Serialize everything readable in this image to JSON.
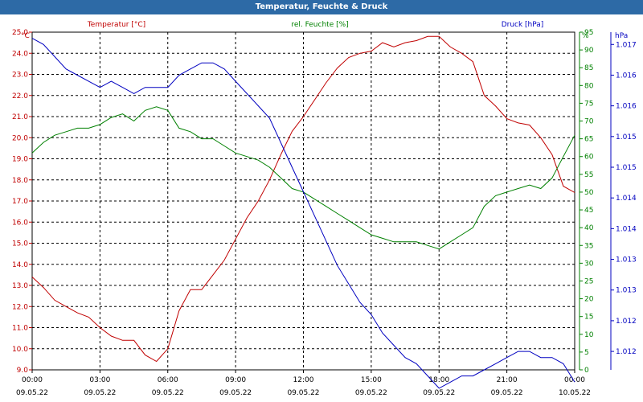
{
  "window": {
    "title": "Temperatur, Feuchte & Druck"
  },
  "chart_data": {
    "type": "line",
    "title": "Temperatur, Feuchte & Druck",
    "axes": {
      "temperature": {
        "label": "Temperatur [°C]",
        "unit": "°C",
        "min": 9.0,
        "max": 25.0,
        "step": 1.0,
        "color": "#c00000"
      },
      "humidity": {
        "label": "rel. Feuchte [%]",
        "unit": "%",
        "min": 0,
        "max": 95,
        "step": 5,
        "color": "#008000"
      },
      "pressure": {
        "label": "Druck [hPa]",
        "unit": "hPa",
        "min": 1.0117,
        "max": 1.0172,
        "color": "#0000c0",
        "ticks": [
          {
            "value": 1.012,
            "label": "1.012"
          },
          {
            "value": 1.0125,
            "label": "1.012"
          },
          {
            "value": 1.013,
            "label": "1.013"
          },
          {
            "value": 1.0135,
            "label": "1.013"
          },
          {
            "value": 1.014,
            "label": "1.014"
          },
          {
            "value": 1.0145,
            "label": "1.014"
          },
          {
            "value": 1.015,
            "label": "1.015"
          },
          {
            "value": 1.0155,
            "label": "1.015"
          },
          {
            "value": 1.016,
            "label": "1.016"
          },
          {
            "value": 1.0165,
            "label": "1.016"
          },
          {
            "value": 1.017,
            "label": "1.017"
          }
        ]
      },
      "x": {
        "min": 0,
        "max": 24,
        "ticks": [
          {
            "time": "00:00",
            "date": "09.05.22",
            "hour": 0
          },
          {
            "time": "03:00",
            "date": "09.05.22",
            "hour": 3
          },
          {
            "time": "06:00",
            "date": "09.05.22",
            "hour": 6
          },
          {
            "time": "09:00",
            "date": "09.05.22",
            "hour": 9
          },
          {
            "time": "12:00",
            "date": "09.05.22",
            "hour": 12
          },
          {
            "time": "15:00",
            "date": "09.05.22",
            "hour": 15
          },
          {
            "time": "18:00",
            "date": "09.05.22",
            "hour": 18
          },
          {
            "time": "21:00",
            "date": "09.05.22",
            "hour": 21
          },
          {
            "time": "00:00",
            "date": "10.05.22",
            "hour": 24
          }
        ]
      }
    },
    "grid": true,
    "series": [
      {
        "name": "Temperatur [°C]",
        "axis": "temperature",
        "color": "#c00000",
        "x": [
          0,
          0.5,
          1,
          1.5,
          2,
          2.5,
          3,
          3.5,
          4,
          4.5,
          5,
          5.5,
          6,
          6.5,
          7,
          7.5,
          8,
          8.5,
          9,
          9.5,
          10,
          10.5,
          11,
          11.5,
          12,
          12.5,
          13,
          13.5,
          14,
          14.5,
          15,
          15.5,
          16,
          16.5,
          17,
          17.5,
          18,
          18.5,
          19,
          19.5,
          20,
          20.5,
          21,
          21.5,
          22,
          22.5,
          23,
          23.5,
          24
        ],
        "values": [
          13.4,
          12.9,
          12.3,
          12.0,
          11.7,
          11.5,
          11.0,
          10.6,
          10.4,
          10.4,
          9.7,
          9.4,
          10.0,
          11.8,
          12.8,
          12.8,
          13.5,
          14.2,
          15.2,
          16.2,
          17.0,
          18.0,
          19.2,
          20.3,
          21.0,
          21.8,
          22.6,
          23.3,
          23.8,
          24.0,
          24.1,
          24.5,
          24.3,
          24.5,
          24.6,
          24.8,
          24.8,
          24.3,
          24.0,
          23.6,
          22.0,
          21.5,
          20.9,
          20.7,
          20.6,
          20.0,
          19.2,
          17.7,
          17.4
        ]
      },
      {
        "name": "rel. Feuchte [%]",
        "axis": "humidity",
        "color": "#008000",
        "x": [
          0,
          0.5,
          1,
          1.5,
          2,
          2.5,
          3,
          3.5,
          4,
          4.5,
          5,
          5.5,
          6,
          6.5,
          7,
          7.5,
          8,
          8.5,
          9,
          9.5,
          10,
          10.5,
          11,
          11.5,
          12,
          12.5,
          13,
          13.5,
          14,
          14.5,
          15,
          15.5,
          16,
          16.5,
          17,
          17.5,
          18,
          18.5,
          19,
          19.5,
          20,
          20.5,
          21,
          21.5,
          22,
          22.5,
          23,
          23.5,
          24
        ],
        "values": [
          61,
          64,
          66,
          67,
          68,
          68,
          69,
          71,
          72,
          70,
          73,
          74,
          73,
          68,
          67,
          65,
          65,
          63,
          61,
          60,
          59,
          57,
          54,
          51,
          50,
          48,
          46,
          44,
          42,
          40,
          38,
          37,
          36,
          36,
          36,
          35,
          34,
          36,
          38,
          40,
          46,
          49,
          50,
          51,
          52,
          51,
          54,
          60,
          66
        ]
      },
      {
        "name": "Druck [hPa]",
        "axis": "pressure",
        "color": "#0000c0",
        "x": [
          0,
          0.5,
          1,
          1.5,
          2,
          2.5,
          3,
          3.5,
          4,
          4.5,
          5,
          5.5,
          6,
          6.5,
          7,
          7.5,
          8,
          8.5,
          9,
          9.5,
          10,
          10.5,
          11,
          11.5,
          12,
          12.5,
          13,
          13.5,
          14,
          14.5,
          15,
          15.5,
          16,
          16.5,
          17,
          17.5,
          18,
          18.5,
          19,
          19.5,
          20,
          20.5,
          21,
          21.5,
          22,
          22.5,
          23,
          23.5,
          24
        ],
        "values": [
          1.0171,
          1.017,
          1.0168,
          1.0166,
          1.0165,
          1.0164,
          1.0163,
          1.0164,
          1.0163,
          1.0162,
          1.0163,
          1.0163,
          1.0163,
          1.0165,
          1.0166,
          1.0167,
          1.0167,
          1.0166,
          1.0164,
          1.0162,
          1.016,
          1.0158,
          1.0154,
          1.015,
          1.0146,
          1.0142,
          1.0138,
          1.0134,
          1.0131,
          1.0128,
          1.0126,
          1.0123,
          1.0121,
          1.0119,
          1.0118,
          1.0116,
          1.0114,
          1.0115,
          1.0116,
          1.0116,
          1.0117,
          1.0118,
          1.0119,
          1.012,
          1.012,
          1.0119,
          1.0119,
          1.0118,
          1.0115
        ]
      }
    ]
  }
}
